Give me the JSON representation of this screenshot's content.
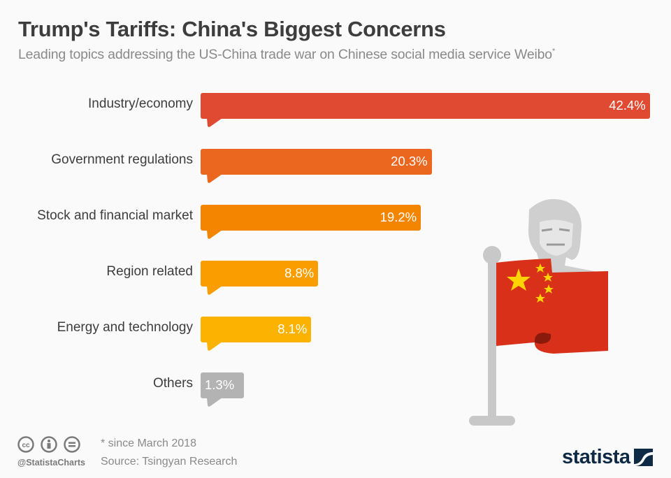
{
  "header": {
    "title": "Trump's Tariffs: China's Biggest Concerns",
    "subtitle": "Leading topics addressing the US-China trade war on Chinese social media service Weibo",
    "subtitle_marker": "*"
  },
  "chart_data": {
    "type": "bar",
    "orientation": "horizontal",
    "title": "Trump's Tariffs: China's Biggest Concerns",
    "subtitle": "Leading topics addressing the US-China trade war on Chinese social media service Weibo*",
    "categories": [
      "Industry/economy",
      "Government regulations",
      "Stock and financial market",
      "Region related",
      "Energy and technology",
      "Others"
    ],
    "values": [
      42.4,
      20.3,
      19.2,
      8.8,
      8.1,
      1.3
    ],
    "value_labels": [
      "42.4%",
      "20.3%",
      "19.2%",
      "8.8%",
      "8.1%",
      "1.3%"
    ],
    "colors": [
      "#e04a32",
      "#eb661f",
      "#f48500",
      "#fa9d00",
      "#fbb200",
      "#b3b3b3"
    ],
    "unit": "%",
    "xlabel": "",
    "ylabel": "",
    "grid": false,
    "legend": "none"
  },
  "footer": {
    "note": "* since March 2018",
    "source": "Source: Tsingyan Research",
    "handle": "@StatistaCharts",
    "license_icons": [
      "cc-icon",
      "by-attribution-icon",
      "no-derivatives-icon"
    ],
    "brand": "statista"
  },
  "colors": {
    "title": "#3d3d3d",
    "subtitle": "#8a8a8a",
    "brand": "#0f2a44",
    "flag_red": "#d9301a",
    "flag_star": "#ffd400",
    "pole": "#c8c8c8"
  }
}
